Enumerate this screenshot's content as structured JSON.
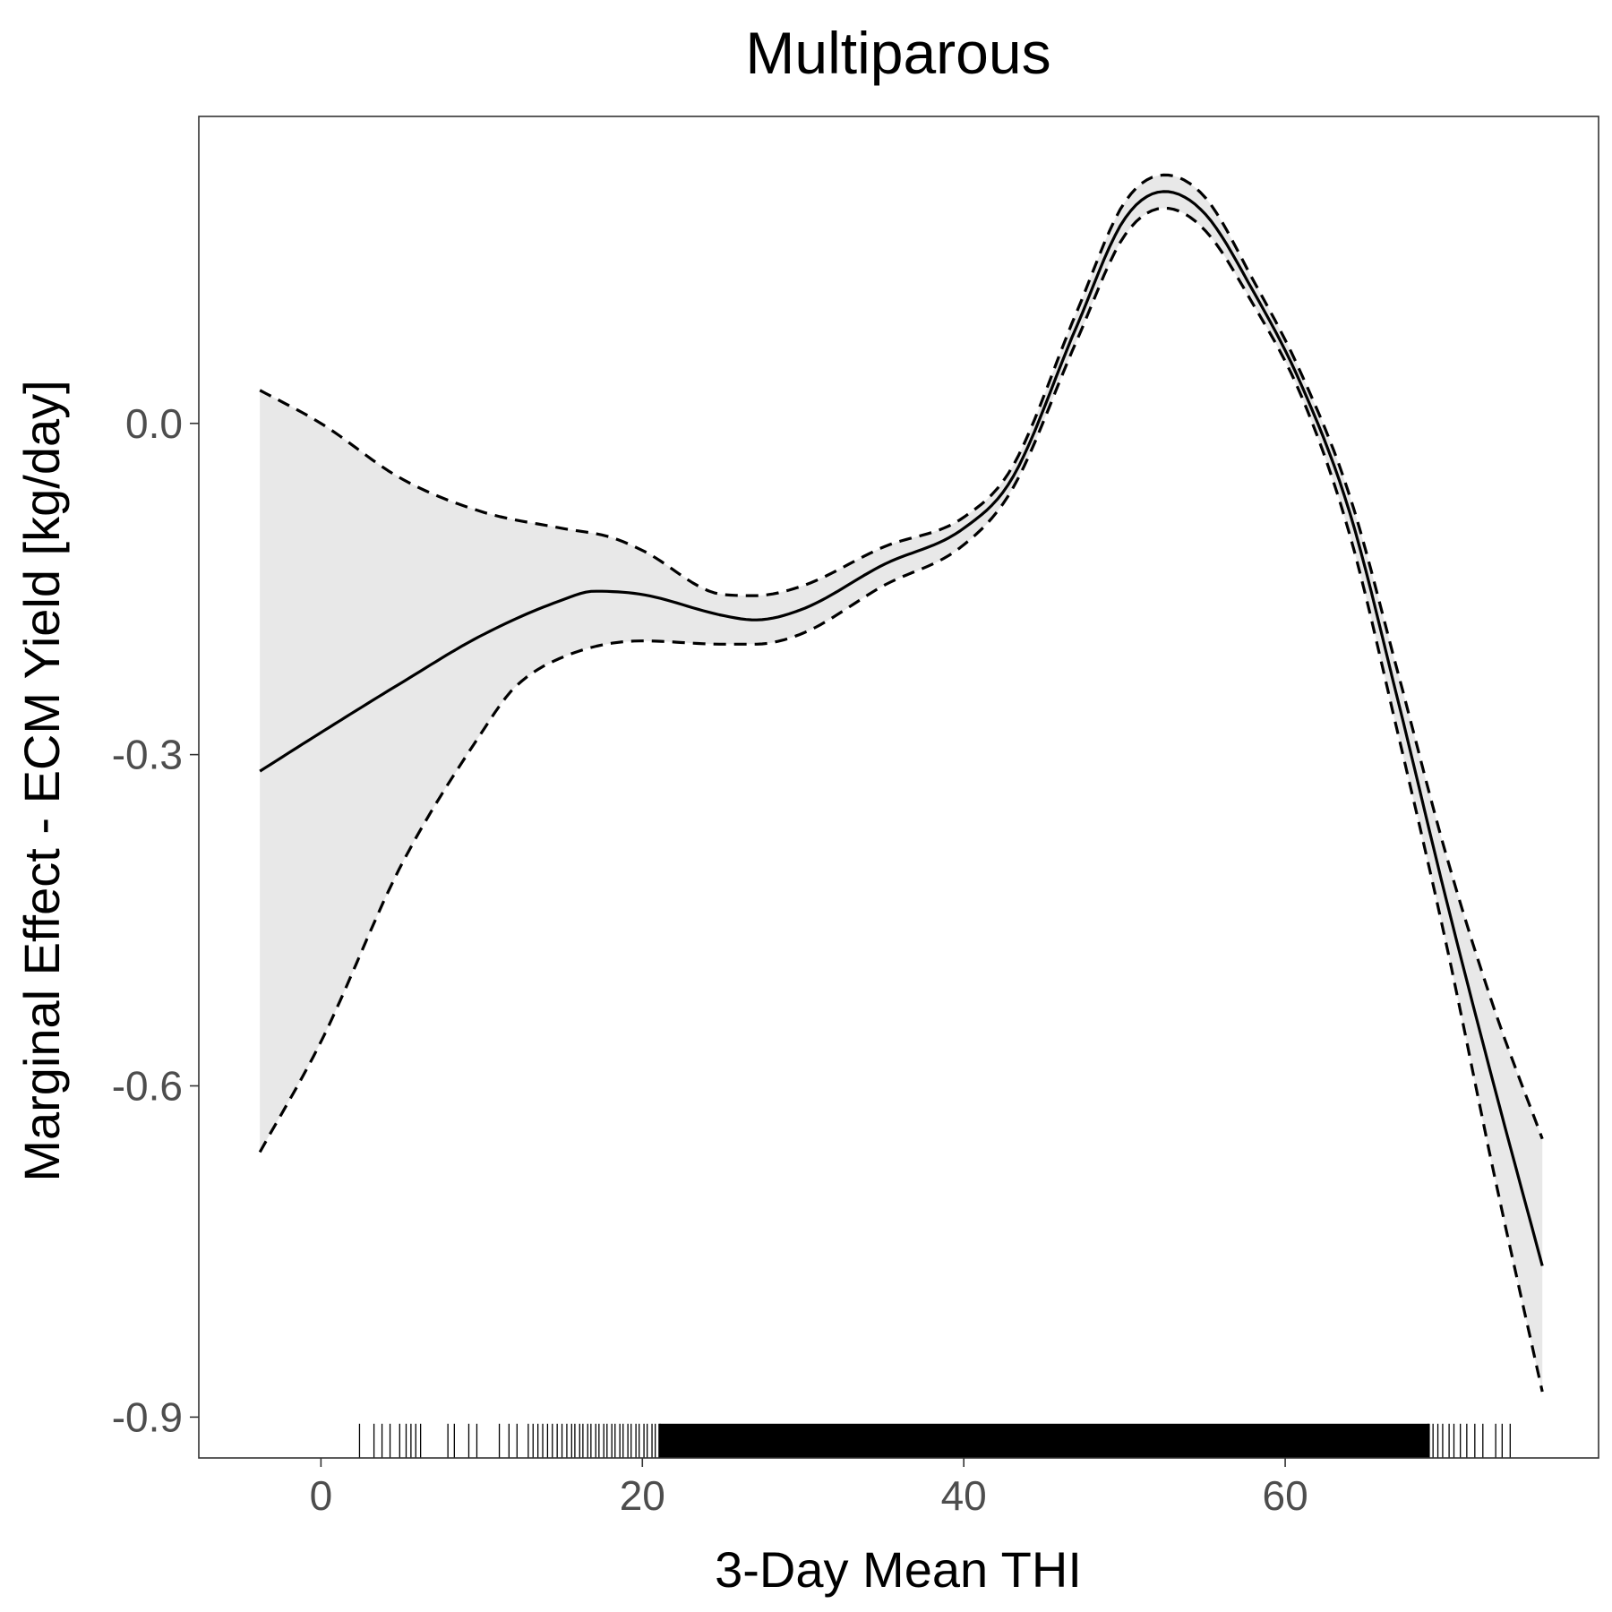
{
  "chart_data": {
    "type": "line",
    "title": "Multiparous",
    "xlabel": "3-Day Mean THI",
    "ylabel": "Marginal Effect - ECM Yield [kg/day]",
    "xlim": [
      -7.6,
      79.5
    ],
    "ylim": [
      -0.937,
      0.278
    ],
    "xticks": [
      0,
      20,
      40,
      60
    ],
    "xtick_labels": [
      "0",
      "20",
      "40",
      "60"
    ],
    "yticks": [
      -0.9,
      -0.6,
      -0.3,
      0.0
    ],
    "ytick_labels": [
      "-0.9",
      "-0.6",
      "-0.3",
      "0.0"
    ],
    "grid": false,
    "legend": "none",
    "colors": {
      "line": "#000000",
      "ribbon": "#e8e8e8",
      "frame": "#333333",
      "tick_text": "#4d4d4d"
    },
    "series": [
      {
        "role": "estimate",
        "style": "solid",
        "x": [
          -3.8,
          0,
          5,
          10,
          15,
          17,
          20,
          25,
          27,
          30,
          35,
          40,
          43,
          47,
          50,
          52.5,
          55,
          58,
          61,
          64,
          67,
          70,
          73,
          76
        ],
        "y": [
          -0.315,
          -0.28,
          -0.235,
          -0.192,
          -0.16,
          -0.152,
          -0.155,
          -0.174,
          -0.178,
          -0.168,
          -0.128,
          -0.095,
          -0.05,
          0.087,
          0.185,
          0.21,
          0.19,
          0.12,
          0.035,
          -0.08,
          -0.25,
          -0.43,
          -0.6,
          -0.763
        ]
      },
      {
        "role": "upper-bound",
        "style": "dashed",
        "x": [
          -3.8,
          0,
          5,
          10,
          15,
          18,
          20,
          25,
          27,
          30,
          35,
          40,
          43,
          47,
          50,
          52.5,
          55,
          58,
          61,
          64,
          67,
          70,
          73,
          76
        ],
        "y": [
          0.03,
          0.0,
          -0.05,
          -0.08,
          -0.095,
          -0.103,
          -0.115,
          -0.155,
          -0.156,
          -0.147,
          -0.112,
          -0.085,
          -0.04,
          0.1,
          0.2,
          0.225,
          0.205,
          0.13,
          0.045,
          -0.065,
          -0.225,
          -0.39,
          -0.53,
          -0.648
        ]
      },
      {
        "role": "lower-bound",
        "style": "dashed",
        "x": [
          -3.8,
          0,
          5,
          10,
          12,
          15,
          20,
          25,
          27,
          30,
          35,
          40,
          43,
          47,
          50,
          52.5,
          55,
          58,
          61,
          64,
          67,
          70,
          73,
          76
        ],
        "y": [
          -0.66,
          -0.56,
          -0.4,
          -0.28,
          -0.24,
          -0.212,
          -0.197,
          -0.2,
          -0.2,
          -0.19,
          -0.147,
          -0.11,
          -0.06,
          0.074,
          0.17,
          0.195,
          0.175,
          0.108,
          0.025,
          -0.1,
          -0.28,
          -0.47,
          -0.68,
          -0.877
        ]
      }
    ],
    "rug": {
      "type": "x-rug",
      "x": [
        2.4,
        3.3,
        3.8,
        4.3,
        4.9,
        5.3,
        5.6,
        5.9,
        6.2,
        7.9,
        8.3,
        9.2,
        9.7,
        11.1,
        11.7,
        12.2,
        12.9,
        13.2,
        13.5,
        13.8,
        14.1,
        14.4,
        14.7,
        15.0,
        15.3,
        15.6,
        15.8,
        16.1,
        16.3,
        16.6,
        16.8,
        17.1,
        17.3,
        17.6,
        17.8,
        18.1,
        18.3,
        18.6,
        18.8,
        19.1,
        19.3,
        19.6,
        19.8,
        20.1,
        20.3,
        20.6,
        20.8,
        21.1,
        68.9,
        69.2,
        69.5,
        69.8,
        70.2,
        70.5,
        70.9,
        71.3,
        71.8,
        72.3,
        73.1,
        73.5,
        74.0
      ],
      "dense_range": [
        21.0,
        69.0
      ]
    }
  }
}
